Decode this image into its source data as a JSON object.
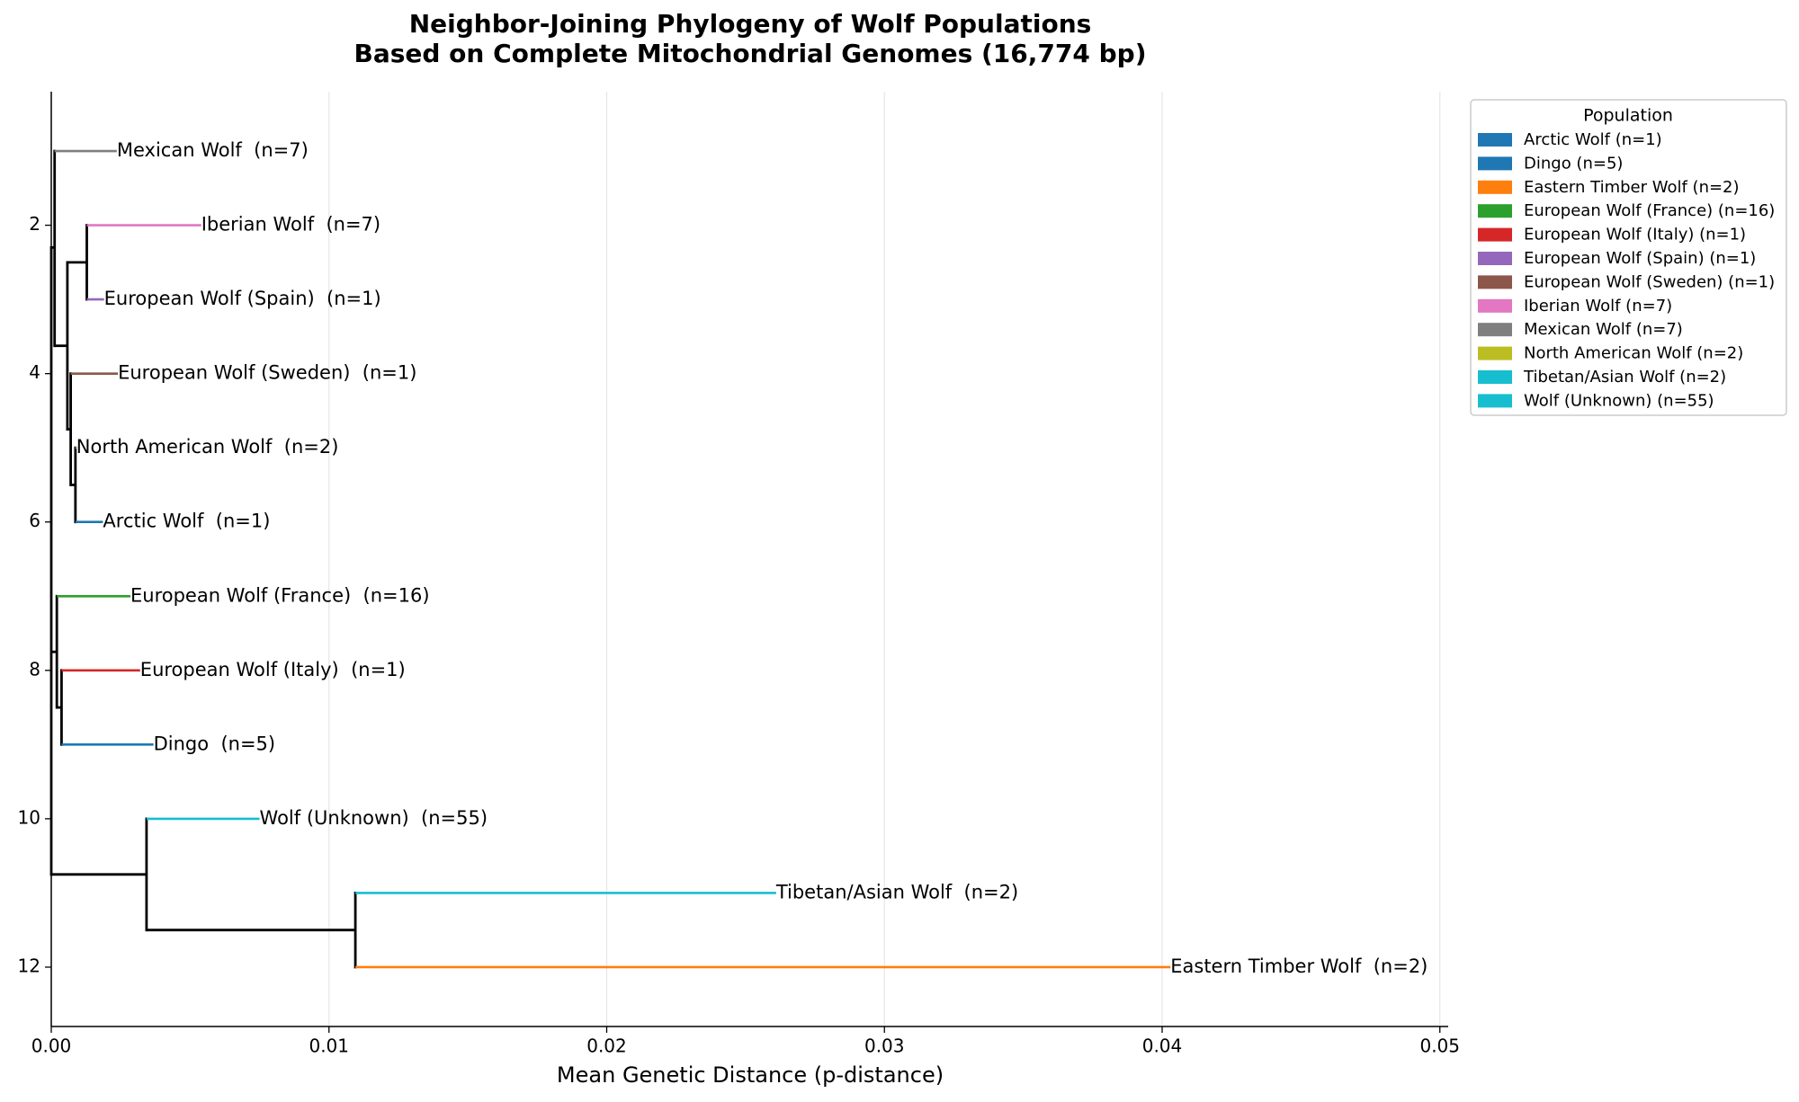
{
  "chart_data": {
    "type": "dendrogram",
    "title": "Neighbor-Joining Phylogeny of Wolf Populations",
    "subtitle": "Based on Complete Mitochondrial Genomes (16,774 bp)",
    "x_label": "Mean Genetic Distance (p-distance)",
    "xlim": [
      0,
      0.0503
    ],
    "xticks": [
      {
        "value": 0,
        "label": "0.00"
      },
      0.01,
      0.02,
      0.03,
      0.04,
      0.05
    ],
    "ylim": [
      12.8,
      0.2
    ],
    "yticks": [
      2,
      4,
      6,
      8,
      10,
      12
    ],
    "grid": true,
    "tree": {
      "x": 0,
      "children": [
        {
          "x": 0.00012,
          "y": 2.3,
          "children": [
            {
              "label": "Mexican Wolf  (n=7)",
              "color": "#7f7f7f",
              "x": 0.00236,
              "y": 1
            },
            {
              "x": 0.00058,
              "y": 3.625,
              "children": [
                {
                  "x": 0.00128,
                  "y": 2.5,
                  "children": [
                    {
                      "label": "Iberian Wolf  (n=7)",
                      "color": "#e377c2",
                      "x": 0.0054,
                      "y": 2
                    },
                    {
                      "label": "European Wolf (Spain)  (n=1)",
                      "color": "#9467bd",
                      "x": 0.0019,
                      "y": 3
                    }
                  ]
                },
                {
                  "x": 0.0007,
                  "y": 4.75,
                  "children": [
                    {
                      "label": "European Wolf (Sweden)  (n=1)",
                      "color": "#8c564b",
                      "x": 0.0024,
                      "y": 4
                    },
                    {
                      "x": 0.00087,
                      "y": 5.5,
                      "children": [
                        {
                          "label": "North American Wolf  (n=2)",
                          "color": "#bcbd22",
                          "x": 0.0009,
                          "y": 5
                        },
                        {
                          "label": "Arctic Wolf  (n=1)",
                          "color": "#1f77b4",
                          "x": 0.00186,
                          "y": 6
                        }
                      ]
                    }
                  ]
                }
              ]
            }
          ]
        },
        {
          "x": 0.0002,
          "y": 7.75,
          "children": [
            {
              "label": "European Wolf (France)  (n=16)",
              "color": "#2ca02c",
              "x": 0.00285,
              "y": 7
            },
            {
              "x": 0.00037,
              "y": 8.5,
              "children": [
                {
                  "label": "European Wolf (Italy)  (n=1)",
                  "color": "#d62728",
                  "x": 0.0032,
                  "y": 8
                },
                {
                  "label": "Dingo  (n=5)",
                  "color": "#1f77b4",
                  "x": 0.00368,
                  "y": 9
                }
              ]
            }
          ]
        },
        {
          "x": 0.00343,
          "y": 10.75,
          "children": [
            {
              "label": "Wolf (Unknown)  (n=55)",
              "color": "#17becf",
              "x": 0.0075,
              "y": 10
            },
            {
              "x": 0.01095,
              "y": 11.5,
              "children": [
                {
                  "label": "Tibetan/Asian Wolf  (n=2)",
                  "color": "#17becf",
                  "x": 0.0261,
                  "y": 11
                },
                {
                  "label": "Eastern Timber Wolf  (n=2)",
                  "color": "#ff7f0e",
                  "x": 0.0403,
                  "y": 12
                }
              ]
            }
          ]
        }
      ]
    },
    "legend": {
      "title": "Population",
      "entries": [
        {
          "label": "Arctic Wolf (n=1)",
          "color": "#1f77b4"
        },
        {
          "label": "Dingo (n=5)",
          "color": "#1f77b4"
        },
        {
          "label": "Eastern Timber Wolf (n=2)",
          "color": "#ff7f0e"
        },
        {
          "label": "European Wolf (France) (n=16)",
          "color": "#2ca02c"
        },
        {
          "label": "European Wolf (Italy) (n=1)",
          "color": "#d62728"
        },
        {
          "label": "European Wolf (Spain) (n=1)",
          "color": "#9467bd"
        },
        {
          "label": "European Wolf (Sweden) (n=1)",
          "color": "#8c564b"
        },
        {
          "label": "Iberian Wolf (n=7)",
          "color": "#e377c2"
        },
        {
          "label": "Mexican Wolf (n=7)",
          "color": "#7f7f7f"
        },
        {
          "label": "North American Wolf (n=2)",
          "color": "#bcbd22"
        },
        {
          "label": "Tibetan/Asian Wolf (n=2)",
          "color": "#17becf"
        },
        {
          "label": "Wolf (Unknown) (n=55)",
          "color": "#17becf"
        }
      ]
    }
  }
}
